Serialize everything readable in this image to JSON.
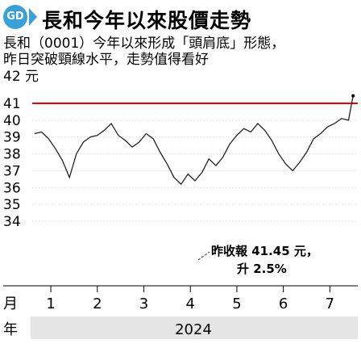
{
  "header": {
    "logo_text": "GD",
    "title": "長和今年以來股價走勢"
  },
  "intro": {
    "line1": "長和（0001）今年以來形成「頭肩底」形態，",
    "line2": "昨日突破頸線水平，走勢值得看好"
  },
  "chart_data": {
    "type": "line",
    "unit_label": "42 元",
    "ylim": [
      34,
      42
    ],
    "yticks": [
      "41",
      "40",
      "39",
      "38",
      "37",
      "36",
      "35",
      "34"
    ],
    "xlim": [
      0.6,
      7.6
    ],
    "x_axis_label": "月",
    "x_ticks": [
      "1",
      "2",
      "3",
      "4",
      "5",
      "6",
      "7"
    ],
    "year_label": "年",
    "year": "2024",
    "neckline": {
      "value": 41.0
    },
    "series": [
      {
        "x": [
          0.65,
          0.8,
          0.95,
          1.1,
          1.25,
          1.4,
          1.55,
          1.7,
          1.85,
          2.0,
          2.15,
          2.3,
          2.45,
          2.6,
          2.75,
          2.9,
          3.05,
          3.2,
          3.35,
          3.5,
          3.65,
          3.8,
          3.95,
          4.1,
          4.25,
          4.4,
          4.55,
          4.7,
          4.85,
          5.0,
          5.15,
          5.3,
          5.45,
          5.6,
          5.75,
          5.9,
          6.05,
          6.2,
          6.35,
          6.5,
          6.65,
          6.8,
          6.95,
          7.1,
          7.25,
          7.4,
          7.5
        ],
        "values": [
          39.2,
          39.3,
          38.9,
          38.3,
          37.6,
          36.6,
          38.0,
          38.7,
          39.0,
          39.1,
          39.4,
          39.8,
          39.1,
          38.8,
          38.4,
          38.7,
          39.2,
          38.9,
          38.1,
          37.4,
          36.6,
          36.2,
          36.8,
          36.4,
          36.9,
          37.7,
          37.3,
          37.8,
          38.6,
          39.1,
          39.5,
          39.3,
          39.8,
          39.4,
          38.8,
          38.0,
          37.4,
          37.0,
          37.5,
          38.1,
          38.9,
          39.2,
          39.6,
          39.8,
          40.1,
          40.0,
          41.45
        ]
      }
    ],
    "annotation": {
      "line1": "昨收報 41.45 元，",
      "line2": "升 2.5%"
    }
  }
}
